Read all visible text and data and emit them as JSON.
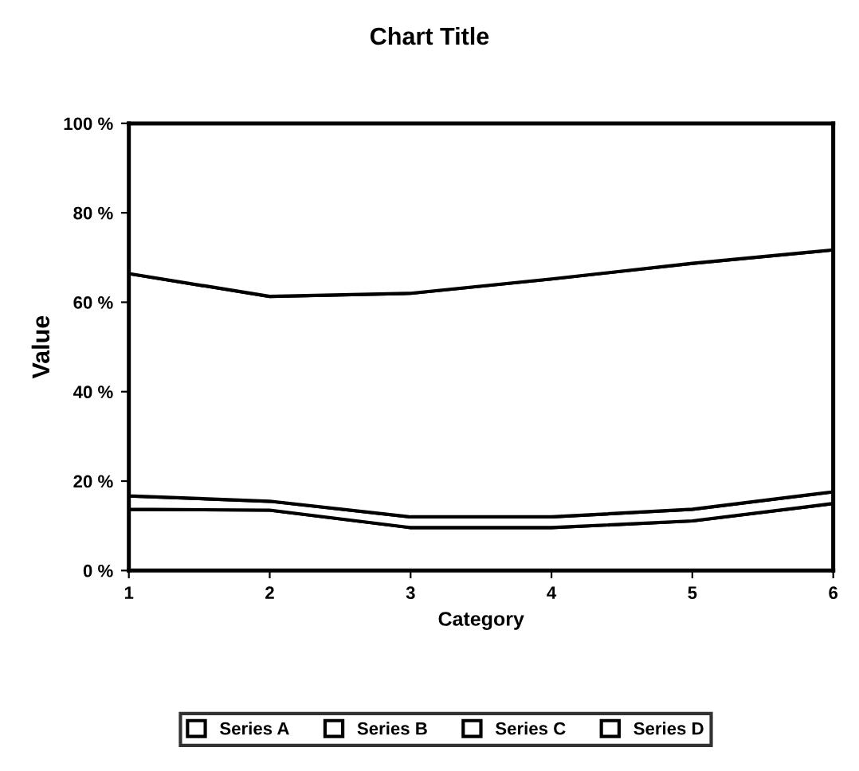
{
  "chart_data": {
    "type": "area",
    "stacked": true,
    "title": "Chart Title",
    "xlabel": "Category",
    "ylabel": "Value",
    "x": [
      1,
      2,
      3,
      4,
      5,
      6
    ],
    "series": [
      {
        "name": "Series A",
        "color": "#ffffff",
        "values": [
          13.7,
          13.5,
          9.6,
          9.6,
          11.1,
          15
        ]
      },
      {
        "name": "Series B",
        "color": "#ffffff",
        "values": [
          3,
          2,
          2.4,
          2.4,
          2.6,
          2.6
        ]
      },
      {
        "name": "Series C",
        "color": "#ffffff",
        "values": [
          49.7,
          45.8,
          50,
          53.2,
          55,
          54.1
        ]
      },
      {
        "name": "Series D",
        "color": "#ffffff",
        "values": [
          33.6,
          38.7,
          38,
          34.8,
          31.3,
          28.3
        ]
      }
    ],
    "xlim": [
      1,
      6
    ],
    "xticks": [
      1,
      2,
      3,
      4,
      5,
      6
    ],
    "ylim": [
      0,
      100
    ],
    "yticks": [
      {
        "value": 0,
        "label": "0 %"
      },
      {
        "value": 20,
        "label": "20 %"
      },
      {
        "value": 40,
        "label": "40 %"
      },
      {
        "value": 60,
        "label": "60 %"
      },
      {
        "value": 80,
        "label": "80 %"
      },
      {
        "value": 100,
        "label": "100 %"
      }
    ],
    "grid": false,
    "legend": "bottom"
  }
}
